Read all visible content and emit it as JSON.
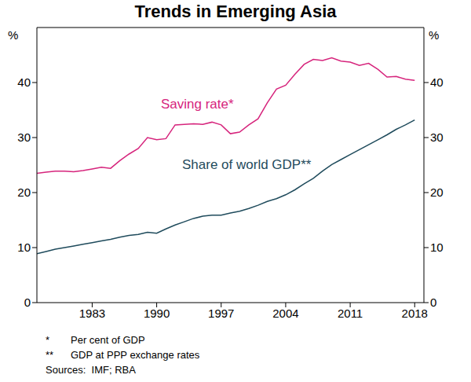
{
  "chart_data": {
    "type": "line",
    "title": "Trends in Emerging Asia",
    "ylabel": "%",
    "x": [
      1977,
      1978,
      1979,
      1980,
      1981,
      1982,
      1983,
      1984,
      1985,
      1986,
      1987,
      1988,
      1989,
      1990,
      1991,
      1992,
      1993,
      1994,
      1995,
      1996,
      1997,
      1998,
      1999,
      2000,
      2001,
      2002,
      2003,
      2004,
      2005,
      2006,
      2007,
      2008,
      2009,
      2010,
      2011,
      2012,
      2013,
      2014,
      2015,
      2016,
      2017,
      2018
    ],
    "series": [
      {
        "name": "Saving rate*",
        "color": "#d6247c",
        "values": [
          23.5,
          23.7,
          23.9,
          23.9,
          23.8,
          24.0,
          24.3,
          24.6,
          24.4,
          25.8,
          27.0,
          28.0,
          30.0,
          29.6,
          29.8,
          32.3,
          32.4,
          32.5,
          32.4,
          32.8,
          32.3,
          30.7,
          31.0,
          32.3,
          33.4,
          36.3,
          38.8,
          39.5,
          41.5,
          43.3,
          44.2,
          44.0,
          44.5,
          43.9,
          43.7,
          43.1,
          43.5,
          42.4,
          41.0,
          41.1,
          40.6,
          40.4
        ]
      },
      {
        "name": "Share of world GDP**",
        "color": "#1f4b5c",
        "values": [
          8.9,
          9.3,
          9.7,
          10.0,
          10.3,
          10.6,
          10.9,
          11.2,
          11.5,
          11.9,
          12.2,
          12.4,
          12.8,
          12.6,
          13.4,
          14.1,
          14.7,
          15.3,
          15.7,
          15.9,
          15.9,
          16.3,
          16.6,
          17.1,
          17.7,
          18.4,
          18.9,
          19.6,
          20.5,
          21.6,
          22.6,
          23.9,
          25.1,
          26.0,
          26.9,
          27.8,
          28.7,
          29.6,
          30.5,
          31.5,
          32.3,
          33.2
        ]
      }
    ],
    "xlim": [
      1977,
      2019
    ],
    "xticks": [
      1983,
      1990,
      1997,
      2004,
      2011,
      2018
    ],
    "ylim": [
      0,
      50
    ],
    "yticks": [
      0,
      10,
      20,
      30,
      40
    ],
    "notes": [
      {
        "mark": "*",
        "text": "Per cent of GDP"
      },
      {
        "mark": "**",
        "text": "GDP at PPP exchange rates"
      }
    ],
    "source": "Sources:  IMF; RBA"
  }
}
